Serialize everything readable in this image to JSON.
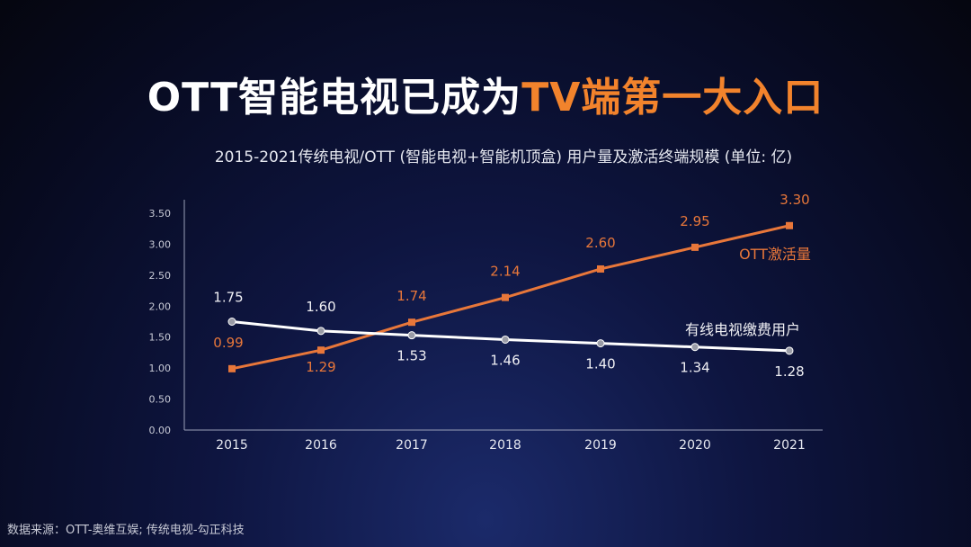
{
  "title": {
    "part1": "OTT智能电视已成为",
    "part2": "TV端第一大入口"
  },
  "source": "数据来源：OTT-奥维互娱; 传统电视-勾正科技",
  "colors": {
    "ott": "#e8773a",
    "cable": "#ffffff",
    "accent": "#f2832c"
  },
  "chart_data": {
    "type": "line",
    "title": "2015-2021传统电视/OTT (智能电视+智能机顶盒) 用户量及激活终端规模 (单位: 亿)",
    "categories": [
      "2015",
      "2016",
      "2017",
      "2018",
      "2019",
      "2020",
      "2021"
    ],
    "ylim": [
      0,
      3.5
    ],
    "yticks": [
      "0.00",
      "0.50",
      "1.00",
      "1.50",
      "2.00",
      "2.50",
      "3.00",
      "3.50"
    ],
    "grid": false,
    "series": [
      {
        "name": "OTT激活量",
        "values": [
          0.99,
          1.29,
          1.74,
          2.14,
          2.6,
          2.95,
          3.3
        ],
        "labels": [
          "0.99",
          "1.29",
          "1.74",
          "2.14",
          "2.60",
          "2.95",
          "3.30"
        ]
      },
      {
        "name": "有线电视缴费用户",
        "values": [
          1.75,
          1.6,
          1.53,
          1.46,
          1.4,
          1.34,
          1.28
        ],
        "labels": [
          "1.75",
          "1.60",
          "1.53",
          "1.46",
          "1.40",
          "1.34",
          "1.28"
        ]
      }
    ]
  }
}
